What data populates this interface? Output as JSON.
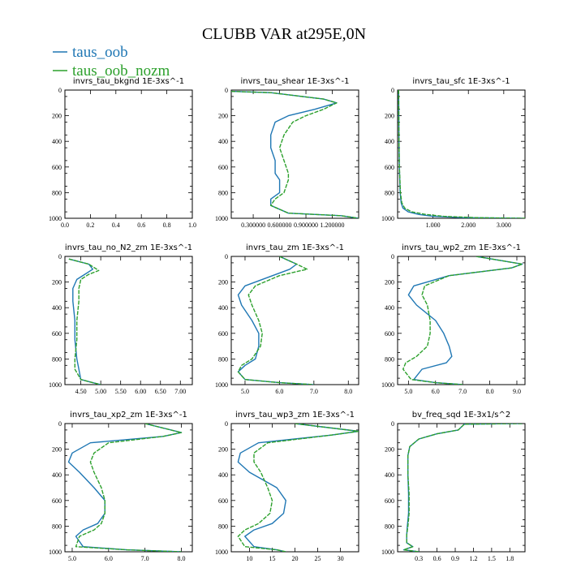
{
  "figure": {
    "title": "CLUBB VAR at295E,0N",
    "legend": [
      {
        "label": "taus_oob",
        "color": "#1f77b4"
      },
      {
        "label": "taus_oob_nozm",
        "color": "#2ca02c"
      }
    ]
  },
  "chart_data": [
    {
      "type": "line",
      "title": "invrs_tau_bkgnd   1E-3xs^-1",
      "xlim": [
        0,
        1
      ],
      "ylim": [
        1000,
        0
      ],
      "xticks": [
        0.0,
        0.2,
        0.4,
        0.6,
        0.8,
        1.0
      ],
      "xticklabels": [
        "0.0",
        "0.2",
        "0.4",
        "0.6",
        "0.8",
        "1.0"
      ],
      "yticks": [
        0,
        200,
        400,
        600,
        800,
        1000
      ],
      "series": []
    },
    {
      "type": "line",
      "title": "invrs_tau_shear   1E-3xs^-1",
      "xlim": [
        0.05,
        1.5
      ],
      "ylim": [
        1000,
        0
      ],
      "xticks": [
        0.3,
        0.6,
        0.9,
        1.2
      ],
      "xticklabels": [
        "0.300000",
        "0.600000",
        "0.900000",
        "1.200000"
      ],
      "yticks": [
        0,
        200,
        400,
        600,
        800,
        1000
      ],
      "series": [
        {
          "name": "taus_oob",
          "x": [
            0.05,
            0.5,
            1.1,
            1.25,
            1.0,
            0.7,
            0.55,
            0.5,
            0.5,
            0.55,
            0.55,
            0.6,
            0.6,
            0.5,
            0.5,
            0.7,
            1.3,
            1.5
          ],
          "y": [
            10,
            20,
            70,
            100,
            150,
            200,
            250,
            350,
            450,
            550,
            650,
            700,
            800,
            850,
            900,
            960,
            980,
            1000
          ]
        },
        {
          "name": "taus_oob_nozm",
          "x": [
            0.05,
            0.5,
            1.1,
            1.25,
            1.1,
            0.9,
            0.75,
            0.65,
            0.6,
            0.65,
            0.7,
            0.7,
            0.65,
            0.55,
            0.5,
            0.7,
            1.3,
            1.5
          ],
          "y": [
            10,
            20,
            70,
            100,
            150,
            200,
            250,
            350,
            450,
            550,
            650,
            700,
            800,
            850,
            900,
            960,
            980,
            1000
          ]
        }
      ]
    },
    {
      "type": "line",
      "title": "invrs_tau_sfc   1E-3xs^-1",
      "xlim": [
        0,
        3.6
      ],
      "ylim": [
        1000,
        0
      ],
      "xticks": [
        1.0,
        2.0,
        3.0
      ],
      "xticklabels": [
        "1.000",
        "2.000",
        "3.000"
      ],
      "yticks": [
        0,
        200,
        400,
        600,
        800,
        1000
      ],
      "series": [
        {
          "name": "taus_oob",
          "x": [
            0.03,
            0.035,
            0.04,
            0.05,
            0.07,
            0.1,
            0.15,
            0.3,
            0.6,
            1.0,
            1.8,
            3.5
          ],
          "y": [
            0,
            200,
            400,
            600,
            800,
            880,
            920,
            950,
            970,
            985,
            995,
            1000
          ]
        },
        {
          "name": "taus_oob_nozm",
          "x": [
            0.03,
            0.035,
            0.04,
            0.05,
            0.08,
            0.12,
            0.2,
            0.4,
            0.8,
            1.3,
            2.2,
            3.6
          ],
          "y": [
            0,
            200,
            400,
            600,
            800,
            880,
            920,
            950,
            970,
            985,
            995,
            1000
          ]
        }
      ]
    },
    {
      "type": "line",
      "title": "invrs_tau_no_N2_zm   1E-3xs^-1",
      "xlim": [
        4.1,
        7.3
      ],
      "ylim": [
        1000,
        0
      ],
      "xticks": [
        4.5,
        5.0,
        5.5,
        6.0,
        6.5,
        7.0
      ],
      "xticklabels": [
        "4.50",
        "5.00",
        "5.50",
        "6.00",
        "6.50",
        "7.00"
      ],
      "yticks": [
        0,
        200,
        400,
        600,
        800,
        1000
      ],
      "series": [
        {
          "name": "taus_oob",
          "x": [
            4.2,
            4.7,
            4.8,
            4.6,
            4.4,
            4.3,
            4.3,
            4.35,
            4.35,
            4.4,
            4.45,
            4.5,
            4.8,
            5.0
          ],
          "y": [
            20,
            60,
            100,
            140,
            180,
            250,
            350,
            500,
            650,
            800,
            880,
            960,
            985,
            1000
          ]
        },
        {
          "name": "taus_oob_nozm",
          "x": [
            4.2,
            4.7,
            4.95,
            4.7,
            4.5,
            4.45,
            4.45,
            4.4,
            4.4,
            4.35,
            4.35,
            4.5,
            4.8,
            5.0
          ],
          "y": [
            20,
            60,
            110,
            140,
            180,
            250,
            350,
            500,
            650,
            800,
            880,
            960,
            985,
            1000
          ]
        }
      ]
    },
    {
      "type": "line",
      "title": "invrs_tau_zm   1E-3xs^-1",
      "xlim": [
        4.6,
        8.3
      ],
      "ylim": [
        1000,
        0
      ],
      "xticks": [
        5.0,
        6.0,
        7.0,
        8.0
      ],
      "xticklabels": [
        "5.0",
        "6.0",
        "7.0",
        "8.0"
      ],
      "yticks": [
        0,
        200,
        400,
        600,
        800,
        1000
      ],
      "series": [
        {
          "name": "taus_oob",
          "x": [
            6.0,
            6.5,
            6.3,
            5.8,
            5.0,
            4.8,
            4.9,
            5.2,
            5.4,
            5.4,
            5.3,
            5.0,
            4.8,
            5.0,
            6.0,
            7.0
          ],
          "y": [
            0,
            60,
            100,
            150,
            230,
            300,
            380,
            500,
            600,
            700,
            800,
            850,
            900,
            960,
            985,
            1000
          ]
        },
        {
          "name": "taus_oob_nozm",
          "x": [
            6.0,
            6.5,
            6.8,
            6.0,
            5.3,
            5.1,
            5.2,
            5.4,
            5.5,
            5.45,
            5.2,
            4.9,
            4.8,
            5.0,
            6.0,
            7.0
          ],
          "y": [
            0,
            60,
            100,
            150,
            230,
            300,
            380,
            500,
            600,
            700,
            800,
            850,
            900,
            960,
            985,
            1000
          ]
        }
      ]
    },
    {
      "type": "line",
      "title": "invrs_tau_wp2_zm   1E-3xs^-1",
      "xlim": [
        4.6,
        9.3
      ],
      "ylim": [
        1000,
        0
      ],
      "xticks": [
        5.0,
        6.0,
        7.0,
        8.0,
        9.0
      ],
      "xticklabels": [
        "5.0",
        "6.0",
        "7.0",
        "8.0",
        "9.0"
      ],
      "yticks": [
        0,
        200,
        400,
        600,
        800,
        1000
      ],
      "series": [
        {
          "name": "taus_oob",
          "x": [
            7.5,
            9.2,
            8.8,
            6.5,
            5.2,
            5.0,
            5.3,
            6.0,
            6.3,
            6.5,
            6.6,
            6.4,
            5.5,
            5.2,
            6.0,
            7.0
          ],
          "y": [
            0,
            60,
            90,
            150,
            230,
            300,
            380,
            500,
            600,
            700,
            780,
            830,
            880,
            960,
            985,
            1000
          ]
        },
        {
          "name": "taus_oob_nozm",
          "x": [
            7.5,
            9.2,
            8.8,
            6.5,
            5.6,
            5.5,
            5.7,
            5.8,
            5.8,
            5.7,
            5.3,
            4.9,
            4.8,
            5.1,
            6.0,
            7.0
          ],
          "y": [
            0,
            60,
            90,
            150,
            230,
            300,
            380,
            500,
            600,
            700,
            780,
            830,
            880,
            960,
            985,
            1000
          ]
        }
      ]
    },
    {
      "type": "line",
      "title": "invrs_tau_xp2_zm   1E-3xs^-1",
      "xlim": [
        4.8,
        8.3
      ],
      "ylim": [
        1000,
        0
      ],
      "xticks": [
        5.0,
        6.0,
        7.0,
        8.0
      ],
      "xticklabels": [
        "5.0",
        "6.0",
        "7.0",
        "8.0"
      ],
      "yticks": [
        0,
        200,
        400,
        600,
        800,
        1000
      ],
      "series": [
        {
          "name": "taus_oob",
          "x": [
            7.0,
            8.0,
            7.5,
            5.5,
            5.0,
            4.9,
            5.2,
            5.6,
            5.9,
            5.9,
            5.7,
            5.3,
            5.1,
            5.3,
            6.5,
            8.0
          ],
          "y": [
            0,
            70,
            100,
            150,
            230,
            300,
            380,
            500,
            600,
            700,
            780,
            830,
            880,
            960,
            985,
            1000
          ]
        },
        {
          "name": "taus_oob_nozm",
          "x": [
            7.0,
            8.0,
            7.5,
            6.0,
            5.6,
            5.5,
            5.6,
            5.8,
            5.9,
            5.9,
            5.8,
            5.6,
            5.2,
            5.1,
            6.5,
            8.0
          ],
          "y": [
            0,
            70,
            100,
            150,
            230,
            300,
            380,
            500,
            600,
            700,
            780,
            830,
            880,
            960,
            985,
            1000
          ]
        }
      ]
    },
    {
      "type": "line",
      "title": "invrs_tau_wp3_zm   1E-3xs^-1",
      "xlim": [
        6,
        34
      ],
      "ylim": [
        1000,
        0
      ],
      "xticks": [
        10,
        15,
        20,
        25,
        30
      ],
      "xticklabels": [
        "10",
        "15",
        "20",
        "25",
        "30"
      ],
      "yticks": [
        0,
        200,
        400,
        600,
        800,
        1000
      ],
      "series": [
        {
          "name": "taus_oob",
          "x": [
            20,
            34,
            28,
            12,
            8,
            7.5,
            10,
            16,
            18,
            17.5,
            15,
            11,
            9,
            11,
            16,
            18
          ],
          "y": [
            0,
            60,
            90,
            150,
            230,
            300,
            380,
            500,
            600,
            700,
            780,
            830,
            880,
            960,
            985,
            1000
          ]
        },
        {
          "name": "taus_oob_nozm",
          "x": [
            20,
            34,
            28,
            14,
            11,
            11,
            12.5,
            14,
            15,
            14.5,
            12,
            9,
            7.5,
            9,
            16,
            18
          ],
          "y": [
            0,
            60,
            90,
            150,
            230,
            300,
            380,
            500,
            600,
            700,
            780,
            830,
            880,
            960,
            985,
            1000
          ]
        }
      ]
    },
    {
      "type": "line",
      "title": "bv_freq_sqd   1E-3x1/s^2",
      "xlim": [
        -0.05,
        2.05
      ],
      "ylim": [
        1000,
        0
      ],
      "xticks": [
        0.3,
        0.6,
        0.9,
        1.2,
        1.5,
        1.8
      ],
      "xticklabels": [
        "0.3",
        "0.6",
        "0.9",
        "1.2",
        "1.5",
        "1.8"
      ],
      "yticks": [
        0,
        200,
        400,
        600,
        800,
        1000
      ],
      "series": [
        {
          "name": "taus_oob",
          "x": [
            2.0,
            1.05,
            0.95,
            0.6,
            0.3,
            0.15,
            0.12,
            0.12,
            0.13,
            0.13,
            0.11,
            0.1,
            0.1,
            0.2,
            0.05,
            0.3
          ],
          "y": [
            0,
            5,
            50,
            80,
            120,
            180,
            250,
            400,
            550,
            700,
            800,
            870,
            930,
            960,
            985,
            1000
          ]
        },
        {
          "name": "taus_oob_nozm",
          "x": [
            2.0,
            1.05,
            0.95,
            0.6,
            0.3,
            0.15,
            0.12,
            0.12,
            0.14,
            0.14,
            0.12,
            0.1,
            0.1,
            0.2,
            0.05,
            0.3
          ],
          "y": [
            0,
            5,
            50,
            80,
            120,
            180,
            250,
            400,
            550,
            700,
            800,
            870,
            930,
            960,
            985,
            1000
          ]
        }
      ]
    }
  ]
}
